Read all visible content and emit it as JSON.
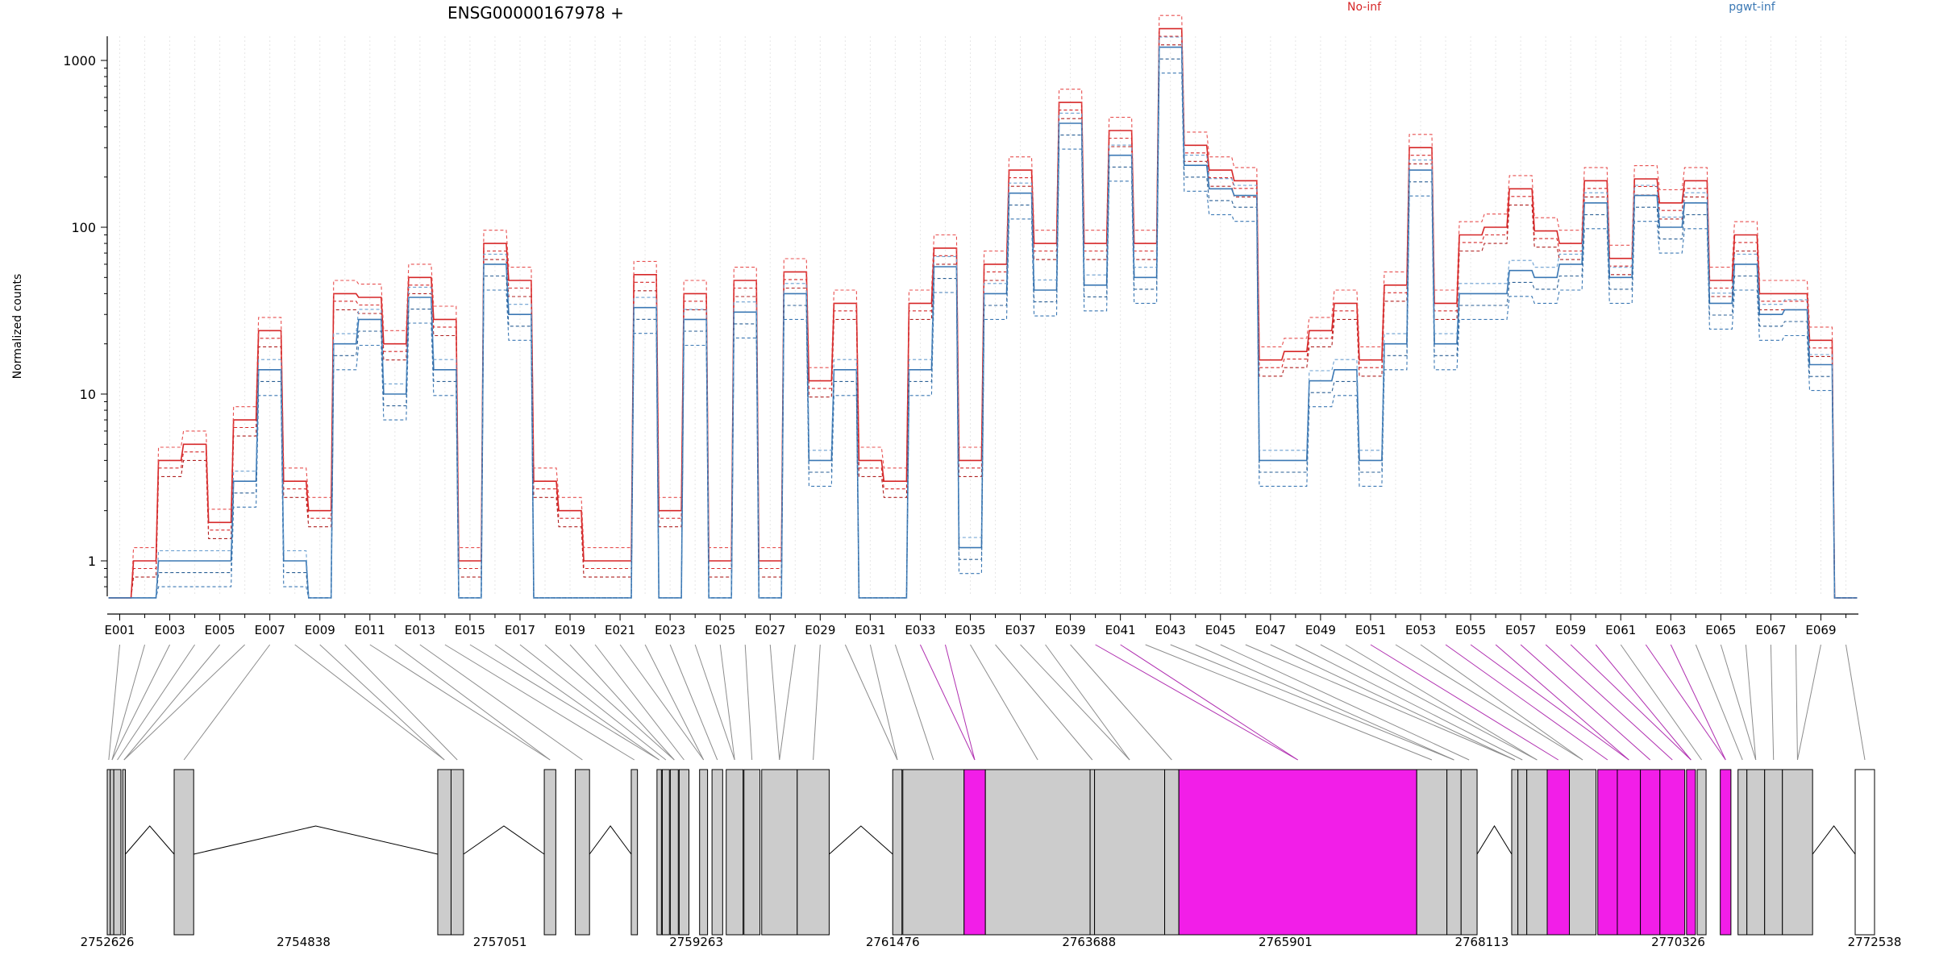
{
  "chart_data": {
    "type": "line",
    "title": "ENSG00000167978 +",
    "ylabel": "Normalized counts",
    "yscale": "log",
    "ylim": [
      0.6,
      2000
    ],
    "yticks": [
      "1",
      "10",
      "100",
      "1000"
    ],
    "grid": "vertical dotted lines at each exon",
    "legend_position": "top",
    "legend": [
      {
        "name": "No-inf",
        "color": "#d62728"
      },
      {
        "name": "pgwt-inf",
        "color": "#3b78b4"
      }
    ],
    "exon_tick_labels": [
      "E001",
      "E003",
      "E005",
      "E007",
      "E009",
      "E011",
      "E013",
      "E015",
      "E017",
      "E019",
      "E021",
      "E023",
      "E025",
      "E027",
      "E029",
      "E031",
      "E033",
      "E035",
      "E037",
      "E039",
      "E041",
      "E043",
      "E045",
      "E047",
      "E049",
      "E051",
      "E053",
      "E055",
      "E057",
      "E059",
      "E061",
      "E063",
      "E065",
      "E067",
      "E069"
    ],
    "genomic_tick_labels": [
      "2752626",
      "2754838",
      "2757051",
      "2759263",
      "2761476",
      "2763688",
      "2765901",
      "2768113",
      "2770326",
      "2772538"
    ],
    "genomic_range": [
      2752626,
      2772538
    ],
    "series": [
      {
        "name": "No-inf",
        "values": [
          0.6,
          1,
          4,
          5,
          1.7,
          7,
          24,
          3,
          2,
          40,
          38,
          20,
          50,
          28,
          1,
          80,
          48,
          3,
          2,
          1,
          1,
          52,
          2,
          40,
          1,
          48,
          1,
          54,
          12,
          35,
          4,
          3,
          35,
          75,
          4,
          60,
          220,
          80,
          560,
          80,
          380,
          80,
          1550,
          310,
          220,
          190,
          16,
          18,
          24,
          35,
          16,
          45,
          300,
          35,
          90,
          100,
          170,
          95,
          80,
          190,
          65,
          195,
          140,
          190,
          48,
          90,
          40,
          40,
          21,
          0.6
        ]
      },
      {
        "name": "pgwt-inf",
        "values": [
          0.6,
          0.6,
          1,
          1,
          1,
          3,
          14,
          1,
          0.6,
          20,
          28,
          10,
          38,
          14,
          0.6,
          60,
          30,
          0.6,
          0.6,
          0.6,
          0.6,
          33,
          0.6,
          28,
          0.6,
          31,
          0.6,
          40,
          4,
          14,
          0.6,
          0.6,
          14,
          58,
          1.2,
          40,
          160,
          42,
          420,
          45,
          270,
          50,
          1200,
          235,
          170,
          155,
          4,
          4,
          12,
          14,
          4,
          20,
          220,
          20,
          40,
          40,
          55,
          50,
          60,
          140,
          50,
          155,
          100,
          140,
          35,
          60,
          30,
          32,
          15,
          0.6
        ]
      }
    ],
    "exon_highlight": [
      "E037",
      "E043",
      "E051",
      "E055",
      "E057",
      "E059",
      "E061",
      "E063"
    ]
  }
}
